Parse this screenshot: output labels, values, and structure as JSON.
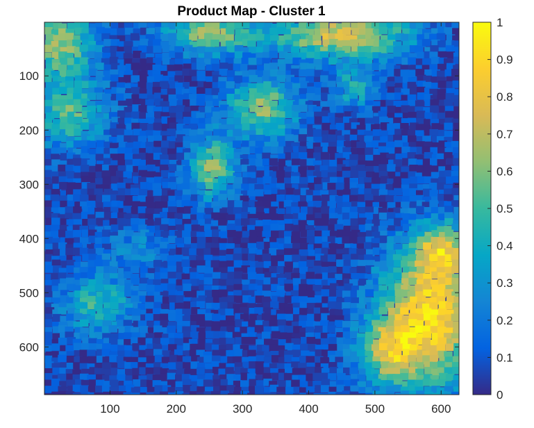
{
  "chart_data": {
    "type": "heatmap",
    "title": "Product Map - Cluster 1",
    "xlabel": "",
    "ylabel": "",
    "xlim": [
      1,
      627
    ],
    "ylim": [
      1,
      688
    ],
    "y_reversed": true,
    "x_ticks": [
      100,
      200,
      300,
      400,
      500,
      600
    ],
    "y_ticks": [
      100,
      200,
      300,
      400,
      500,
      600
    ],
    "colormap": "parula",
    "colorbar": {
      "range": [
        0,
        1
      ],
      "ticks": [
        0,
        0.1,
        0.2,
        0.3,
        0.4,
        0.5,
        0.6,
        0.7,
        0.8,
        0.9,
        1
      ],
      "tick_labels": [
        "0",
        "0.1",
        "0.2",
        "0.3",
        "0.4",
        "0.5",
        "0.6",
        "0.7",
        "0.8",
        "0.9",
        "1"
      ],
      "colors": [
        "#352a87",
        "#0363e1",
        "#1485d4",
        "#06a7c6",
        "#38b99e",
        "#92bf73",
        "#d9ba56",
        "#fcce2e",
        "#f9fb0e"
      ]
    },
    "regions": [
      {
        "label": "low background (diagonal band)",
        "x_range": [
          1,
          627
        ],
        "y_range": [
          1,
          688
        ],
        "approx_value": 0.08
      },
      {
        "label": "top-left high region",
        "x_range": [
          1,
          120
        ],
        "y_range": [
          1,
          260
        ],
        "approx_value": 0.6
      },
      {
        "label": "top-center high region",
        "x_range": [
          200,
          430
        ],
        "y_range": [
          1,
          360
        ],
        "approx_value": 0.7
      },
      {
        "label": "top-right high region",
        "x_range": [
          380,
          627
        ],
        "y_range": [
          1,
          120
        ],
        "approx_value": 0.8
      },
      {
        "label": "bottom-left patch",
        "x_range": [
          20,
          230
        ],
        "y_range": [
          380,
          620
        ],
        "approx_value": 0.4
      },
      {
        "label": "bottom-right high region",
        "x_range": [
          460,
          627
        ],
        "y_range": [
          360,
          688
        ],
        "approx_value": 0.9
      }
    ]
  }
}
